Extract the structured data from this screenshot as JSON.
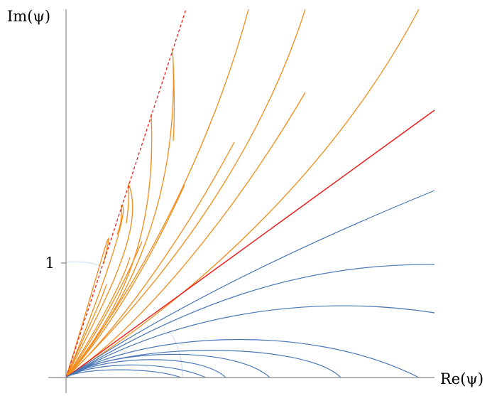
{
  "axes": {
    "x_label": "Re(ψ)",
    "y_label": "Im(ψ)",
    "y_tick_label": "1",
    "color": "#888888"
  },
  "colors": {
    "orange": "#f28c1a",
    "blue": "#4a78b5",
    "red": "#ee1c1c",
    "dashed_boundary": "#ee1c1c",
    "faint_arc": "#d8e6f5"
  }
}
